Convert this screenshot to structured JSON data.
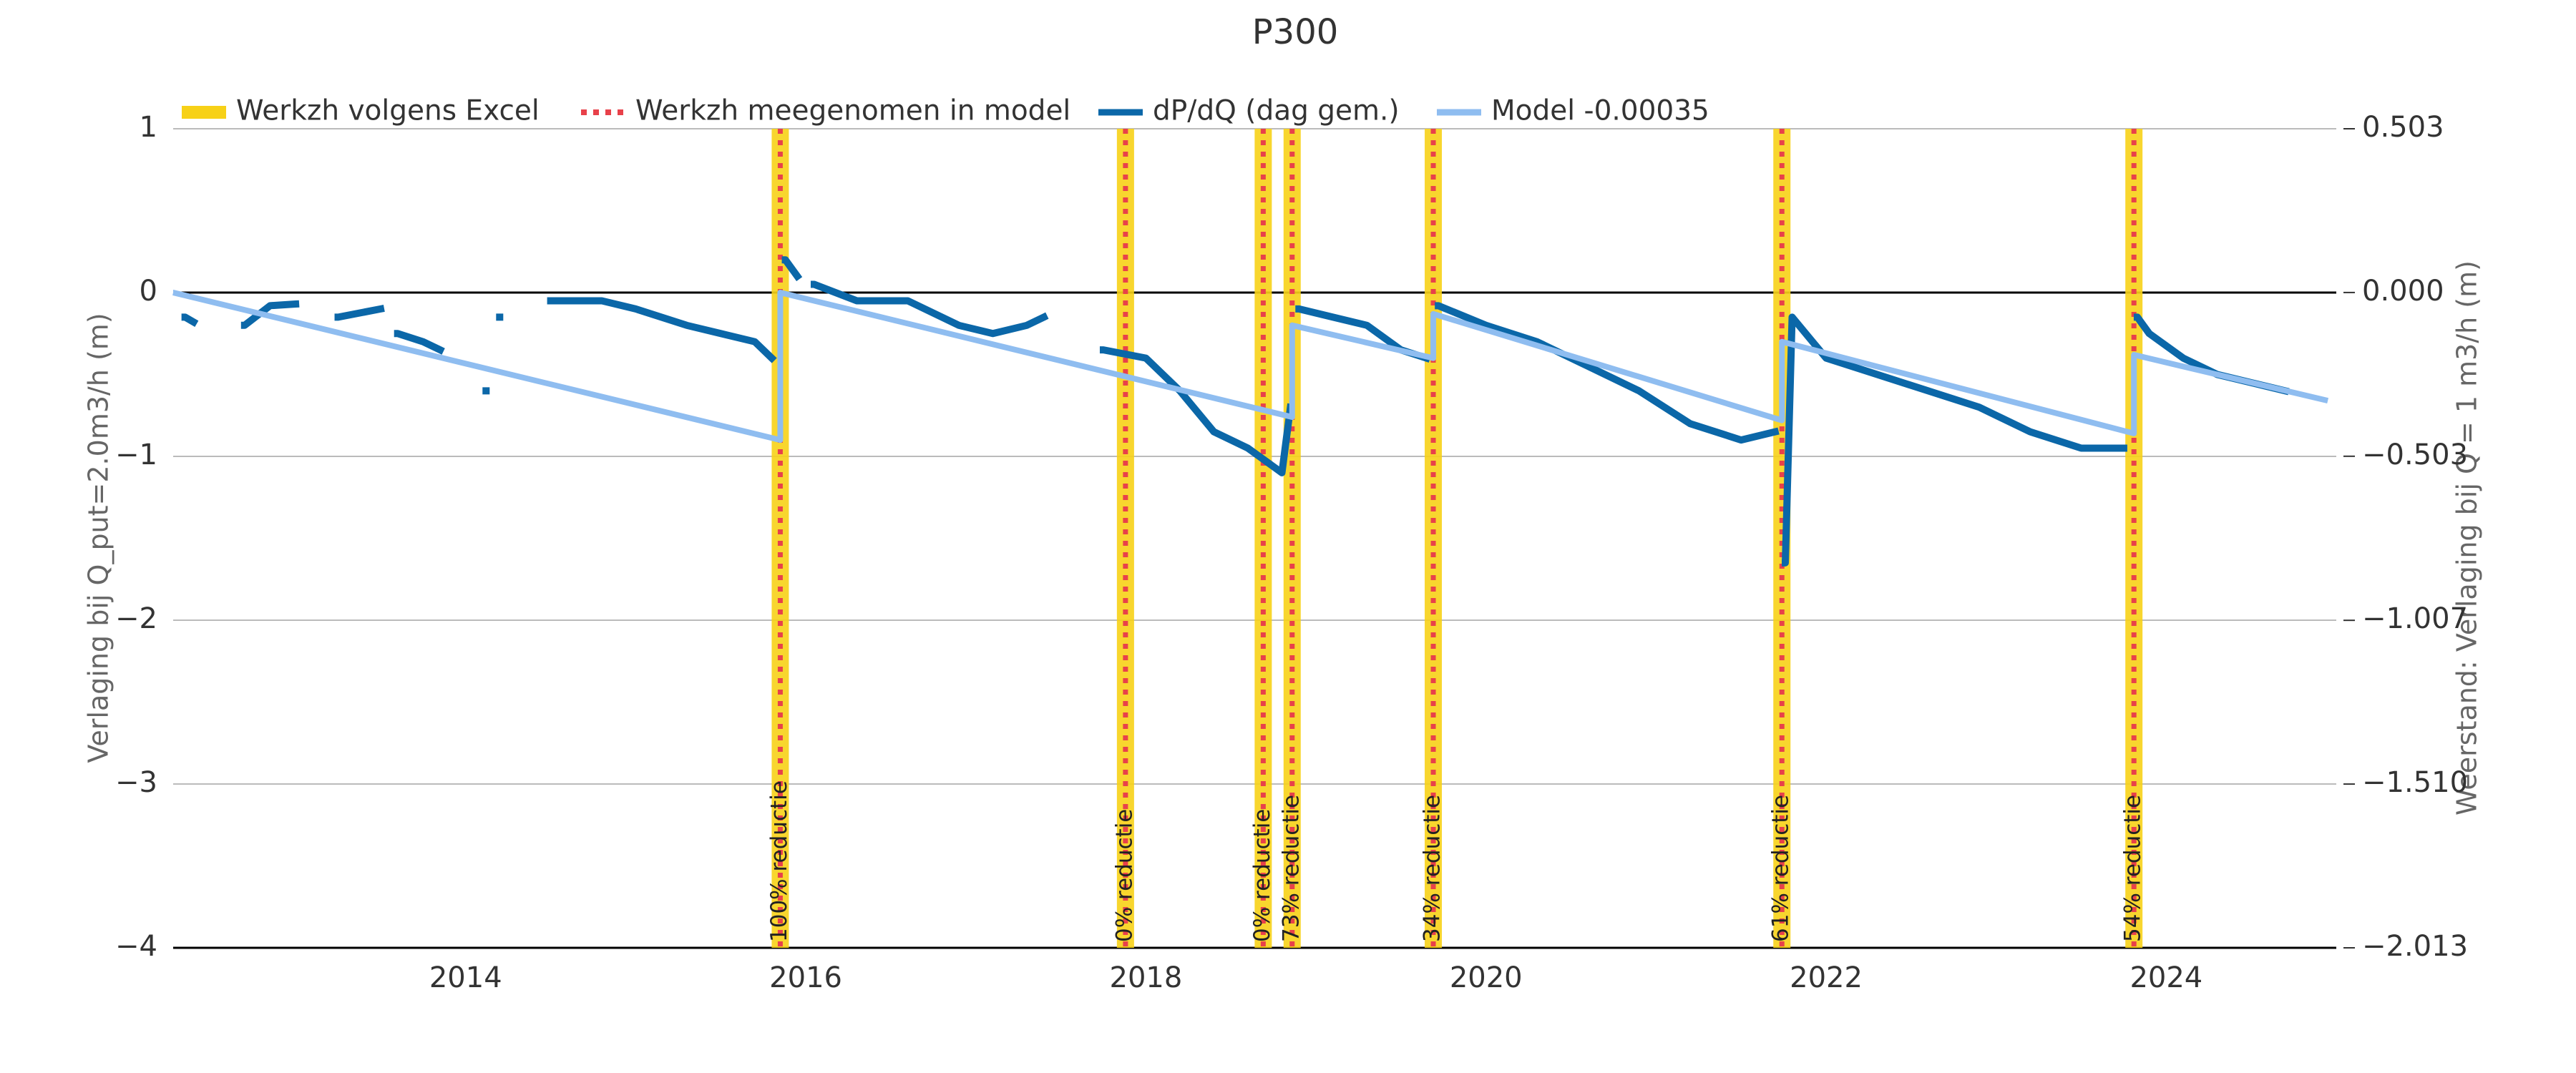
{
  "chart_data": {
    "type": "line",
    "title": "P300",
    "ylabel": "Verlaging bij Q_put=2.0m3/h (m)",
    "y2label": "Weerstand: Verlaging bij Q = 1 m3/h (m)",
    "xlim": [
      2012.28,
      2025.0
    ],
    "xticks": [
      2014,
      2016,
      2018,
      2020,
      2022,
      2024
    ],
    "ylim": [
      -4,
      1
    ],
    "yticks": [
      {
        "value": -4,
        "label": "−4"
      },
      {
        "value": -3,
        "label": "−3"
      },
      {
        "value": -2,
        "label": "−2"
      },
      {
        "value": -1,
        "label": "−1"
      },
      0,
      1
    ],
    "y2lim": [
      -2.013,
      0.503
    ],
    "y2ticks": [
      {
        "value": -2.013,
        "label": "−2.013"
      },
      {
        "value": -1.51,
        "label": "−1.510"
      },
      {
        "value": -1.007,
        "label": "−1.007"
      },
      {
        "value": -0.503,
        "label": "−0.503"
      },
      {
        "value": 0,
        "label": "0.000"
      },
      0.503
    ],
    "grid": true,
    "legend": "top",
    "events": {
      "x": [
        2015.85,
        2017.88,
        2018.69,
        2018.86,
        2019.69,
        2021.74,
        2023.81
      ],
      "labels": [
        "100% reductie",
        "0% reductie",
        "0% reductie",
        "73% reductie",
        "34% reductie",
        "61% reductie",
        "54% reductie"
      ]
    },
    "series": [
      {
        "name": "Werkzh volgens Excel",
        "color": "#f7d117",
        "style": "band"
      },
      {
        "name": "Werkzh meegenomen in model",
        "color": "#e8414a",
        "style": "dotted"
      },
      {
        "name": "dP/dQ (dag gem.)",
        "color": "#0b67a8",
        "style": "line",
        "x": [
          2012.35,
          2012.4,
          2012.55,
          2012.7,
          2012.85,
          2013.0,
          2013.1,
          2013.25,
          2013.5,
          2013.55,
          2013.6,
          2013.75,
          2013.85,
          2014.0,
          2014.12,
          2014.15,
          2014.2,
          2014.35,
          2014.5,
          2014.8,
          2015.0,
          2015.3,
          2015.5,
          2015.7,
          2015.8,
          2015.84,
          2015.88,
          2015.95,
          2016.0,
          2016.05,
          2016.3,
          2016.6,
          2016.9,
          2017.1,
          2017.3,
          2017.4,
          2017.6,
          2017.75,
          2018.0,
          2018.2,
          2018.4,
          2018.6,
          2018.8,
          2018.85,
          2018.87,
          2018.9,
          2019.1,
          2019.3,
          2019.5,
          2019.65,
          2019.7,
          2019.72,
          2020.0,
          2020.3,
          2020.6,
          2020.9,
          2021.2,
          2021.5,
          2021.7,
          2021.73,
          2021.76,
          2021.8,
          2022.0,
          2022.3,
          2022.6,
          2022.9,
          2023.2,
          2023.5,
          2023.75,
          2023.8,
          2023.83,
          2023.9,
          2024.1,
          2024.3,
          2024.5,
          2024.7
        ],
        "values": [
          -0.15,
          -0.18,
          null,
          -0.2,
          -0.08,
          -0.07,
          null,
          -0.15,
          -0.1,
          null,
          -0.25,
          -0.3,
          -0.35,
          null,
          -0.6,
          null,
          -0.15,
          null,
          -0.05,
          -0.05,
          -0.1,
          -0.2,
          -0.25,
          -0.3,
          -0.4,
          null,
          0.2,
          0.1,
          null,
          0.05,
          -0.05,
          -0.05,
          -0.2,
          -0.25,
          -0.2,
          -0.15,
          null,
          -0.35,
          -0.4,
          -0.6,
          -0.85,
          -0.95,
          -1.1,
          -0.7,
          null,
          -0.1,
          -0.15,
          -0.2,
          -0.35,
          -0.4,
          null,
          -0.08,
          -0.2,
          -0.3,
          -0.45,
          -0.6,
          -0.8,
          -0.9,
          -0.85,
          null,
          -1.65,
          -0.15,
          -0.4,
          -0.5,
          -0.6,
          -0.7,
          -0.85,
          -0.95,
          -0.95,
          null,
          -0.15,
          -0.25,
          -0.4,
          -0.5,
          -0.55,
          -0.6
        ]
      },
      {
        "name": "Model -0.00035",
        "color": "#8fbdf0",
        "style": "line",
        "x": [
          2012.28,
          2015.85,
          2015.85,
          2018.86,
          2018.86,
          2019.69,
          2019.69,
          2021.74,
          2021.74,
          2023.81,
          2023.81,
          2024.95
        ],
        "values": [
          0,
          -0.9,
          0,
          -0.76,
          -0.2,
          -0.4,
          -0.13,
          -0.78,
          -0.3,
          -0.86,
          -0.38,
          -0.66
        ]
      }
    ]
  }
}
